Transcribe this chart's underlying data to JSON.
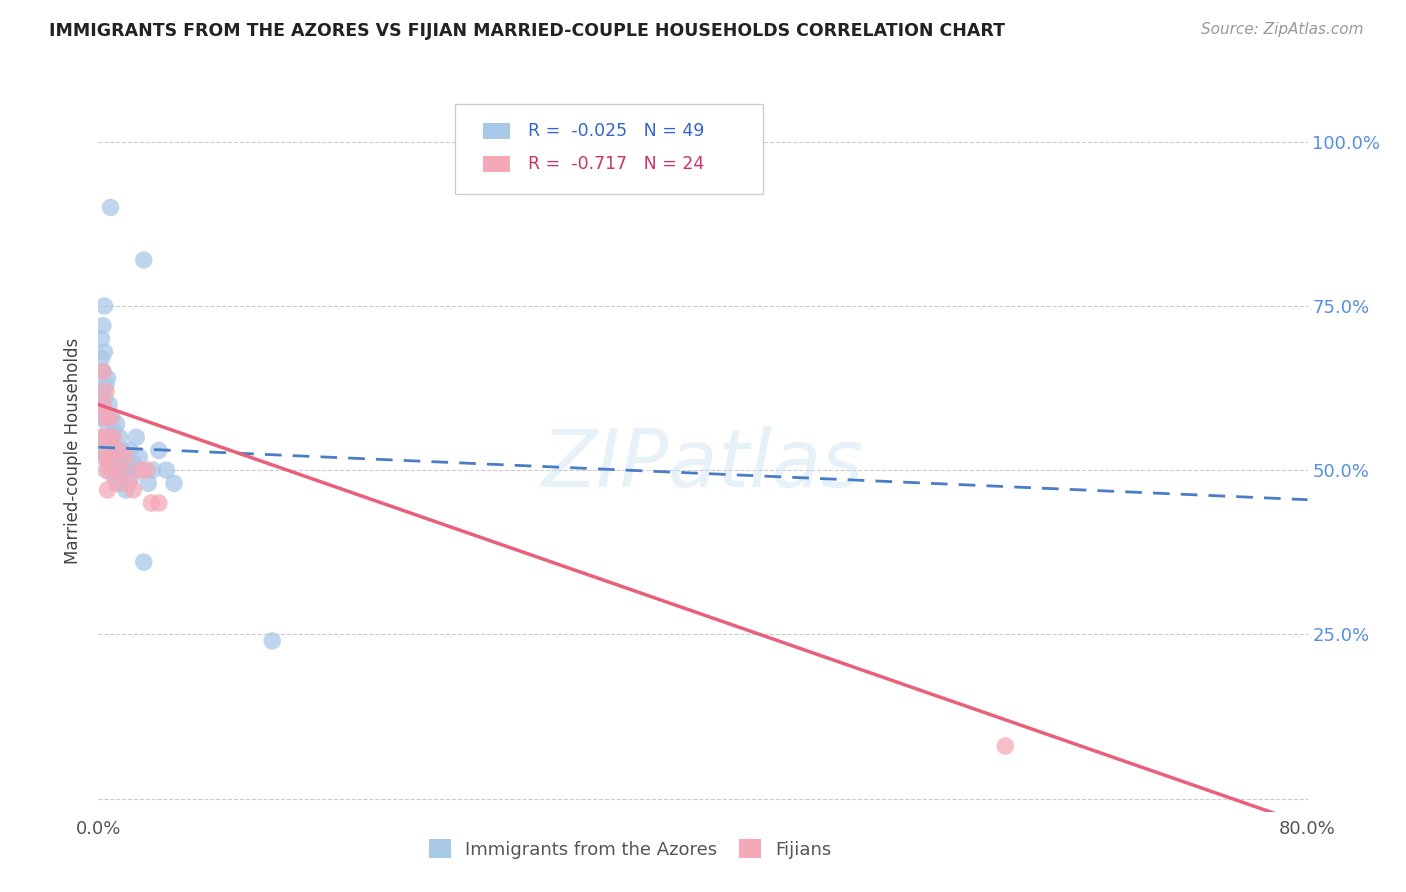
{
  "title": "IMMIGRANTS FROM THE AZORES VS FIJIAN MARRIED-COUPLE HOUSEHOLDS CORRELATION CHART",
  "source": "Source: ZipAtlas.com",
  "ylabel": "Married-couple Households",
  "xlim": [
    0.0,
    0.8
  ],
  "ylim": [
    -0.02,
    1.08
  ],
  "yticks": [
    0.0,
    0.25,
    0.5,
    0.75,
    1.0
  ],
  "ytick_labels": [
    "",
    "25.0%",
    "50.0%",
    "75.0%",
    "100.0%"
  ],
  "xticks": [
    0.0,
    0.1,
    0.2,
    0.3,
    0.4,
    0.5,
    0.6,
    0.7,
    0.8
  ],
  "blue_R": "-0.025",
  "blue_N": "49",
  "pink_R": "-0.717",
  "pink_N": "24",
  "blue_color": "#a8c8e8",
  "pink_color": "#f4a8b8",
  "blue_line_color": "#4a7cc7",
  "pink_line_color": "#e8607a",
  "watermark": "ZIPatlas",
  "blue_trend_x0": 0.0,
  "blue_trend_x1": 0.8,
  "blue_trend_y0": 0.535,
  "blue_trend_y1": 0.455,
  "pink_trend_x0": 0.0,
  "pink_trend_x1": 0.8,
  "pink_trend_y0": 0.6,
  "pink_trend_y1": -0.04,
  "blue_x": [
    0.001,
    0.001,
    0.002,
    0.002,
    0.002,
    0.003,
    0.003,
    0.003,
    0.004,
    0.004,
    0.004,
    0.004,
    0.005,
    0.005,
    0.005,
    0.006,
    0.006,
    0.007,
    0.007,
    0.007,
    0.008,
    0.009,
    0.009,
    0.01,
    0.01,
    0.011,
    0.012,
    0.013,
    0.014,
    0.015,
    0.016,
    0.017,
    0.018,
    0.019,
    0.02,
    0.021,
    0.022,
    0.023,
    0.025,
    0.027,
    0.03,
    0.033,
    0.036,
    0.04,
    0.045,
    0.05,
    0.115,
    0.03,
    0.008
  ],
  "blue_y": [
    0.53,
    0.58,
    0.67,
    0.62,
    0.7,
    0.6,
    0.65,
    0.72,
    0.55,
    0.61,
    0.68,
    0.75,
    0.58,
    0.63,
    0.52,
    0.57,
    0.64,
    0.55,
    0.6,
    0.5,
    0.54,
    0.58,
    0.52,
    0.56,
    0.49,
    0.53,
    0.57,
    0.51,
    0.55,
    0.48,
    0.53,
    0.5,
    0.47,
    0.52,
    0.5,
    0.53,
    0.49,
    0.51,
    0.55,
    0.52,
    0.36,
    0.48,
    0.5,
    0.53,
    0.5,
    0.48,
    0.24,
    0.82,
    0.9
  ],
  "pink_x": [
    0.002,
    0.003,
    0.003,
    0.004,
    0.004,
    0.005,
    0.005,
    0.006,
    0.006,
    0.007,
    0.008,
    0.009,
    0.01,
    0.012,
    0.013,
    0.015,
    0.018,
    0.02,
    0.023,
    0.027,
    0.032,
    0.04,
    0.6,
    0.035
  ],
  "pink_y": [
    0.55,
    0.6,
    0.65,
    0.52,
    0.58,
    0.5,
    0.62,
    0.47,
    0.55,
    0.52,
    0.58,
    0.5,
    0.55,
    0.48,
    0.53,
    0.5,
    0.52,
    0.48,
    0.47,
    0.5,
    0.5,
    0.45,
    0.08,
    0.45
  ]
}
